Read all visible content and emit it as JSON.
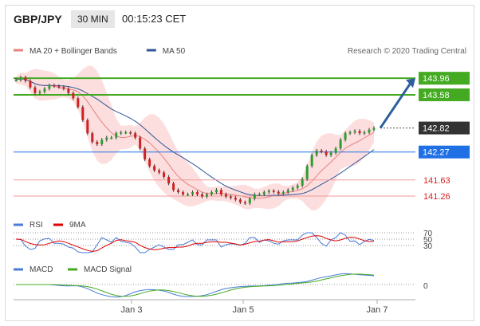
{
  "header": {
    "pair": "GBP/JPY",
    "timeframe": "30 MIN",
    "time": "00:15:23 CET"
  },
  "credit": "Research © 2020 Trading Central",
  "legend": [
    {
      "label": "MA 20 + Bollinger Bands",
      "color": "#e88080"
    },
    {
      "label": "MA 50",
      "color": "#2f5597"
    }
  ],
  "rsi_legend": [
    {
      "label": "RSI",
      "color": "#4a7cd6"
    },
    {
      "label": "9MA",
      "color": "#e00000"
    }
  ],
  "macd_legend": [
    {
      "label": "MACD",
      "color": "#4a7cd6"
    },
    {
      "label": "MACD Signal",
      "color": "#44aa22"
    }
  ],
  "chart_data": {
    "type": "candlestick",
    "price_range": [
      140.95,
      144.2
    ],
    "x_ticks": [
      "Jan 3",
      "Jan 5",
      "Jan 7"
    ],
    "levels": [
      {
        "value": 143.96,
        "label": "143.96",
        "color": "#44aa22",
        "style": "resistance"
      },
      {
        "value": 143.58,
        "label": "143.58",
        "color": "#44aa22",
        "style": "resistance"
      },
      {
        "value": 142.82,
        "label": "142.82",
        "color": "#222222",
        "style": "current"
      },
      {
        "value": 142.27,
        "label": "142.27",
        "color": "#1f6fe5",
        "style": "pivot"
      },
      {
        "value": 141.63,
        "label": "141.63",
        "color": "#dd2222",
        "style": "support"
      },
      {
        "value": 141.26,
        "label": "141.26",
        "color": "#dd2222",
        "style": "support"
      }
    ],
    "price_path": [
      143.92,
      143.98,
      143.9,
      143.75,
      143.62,
      143.65,
      143.72,
      143.8,
      143.78,
      143.76,
      143.72,
      143.62,
      143.5,
      143.3,
      143.0,
      142.7,
      142.5,
      142.45,
      142.55,
      142.6,
      142.6,
      142.7,
      142.72,
      142.72,
      142.7,
      142.6,
      142.35,
      142.1,
      141.95,
      141.85,
      141.8,
      141.7,
      141.55,
      141.4,
      141.35,
      141.3,
      141.3,
      141.35,
      141.3,
      141.25,
      141.3,
      141.35,
      141.4,
      141.3,
      141.25,
      141.22,
      141.18,
      141.12,
      141.1,
      141.2,
      141.3,
      141.3,
      141.35,
      141.38,
      141.36,
      141.32,
      141.35,
      141.4,
      141.45,
      141.5,
      141.65,
      141.95,
      142.2,
      142.3,
      142.28,
      142.2,
      142.25,
      142.35,
      142.55,
      142.7,
      142.72,
      142.75,
      142.7,
      142.72,
      142.78,
      142.82
    ],
    "projection": {
      "from": 142.82,
      "to": 143.96
    },
    "rsi": {
      "levels": [
        70,
        50,
        30
      ]
    },
    "macd": {
      "levels": [
        0
      ]
    }
  }
}
